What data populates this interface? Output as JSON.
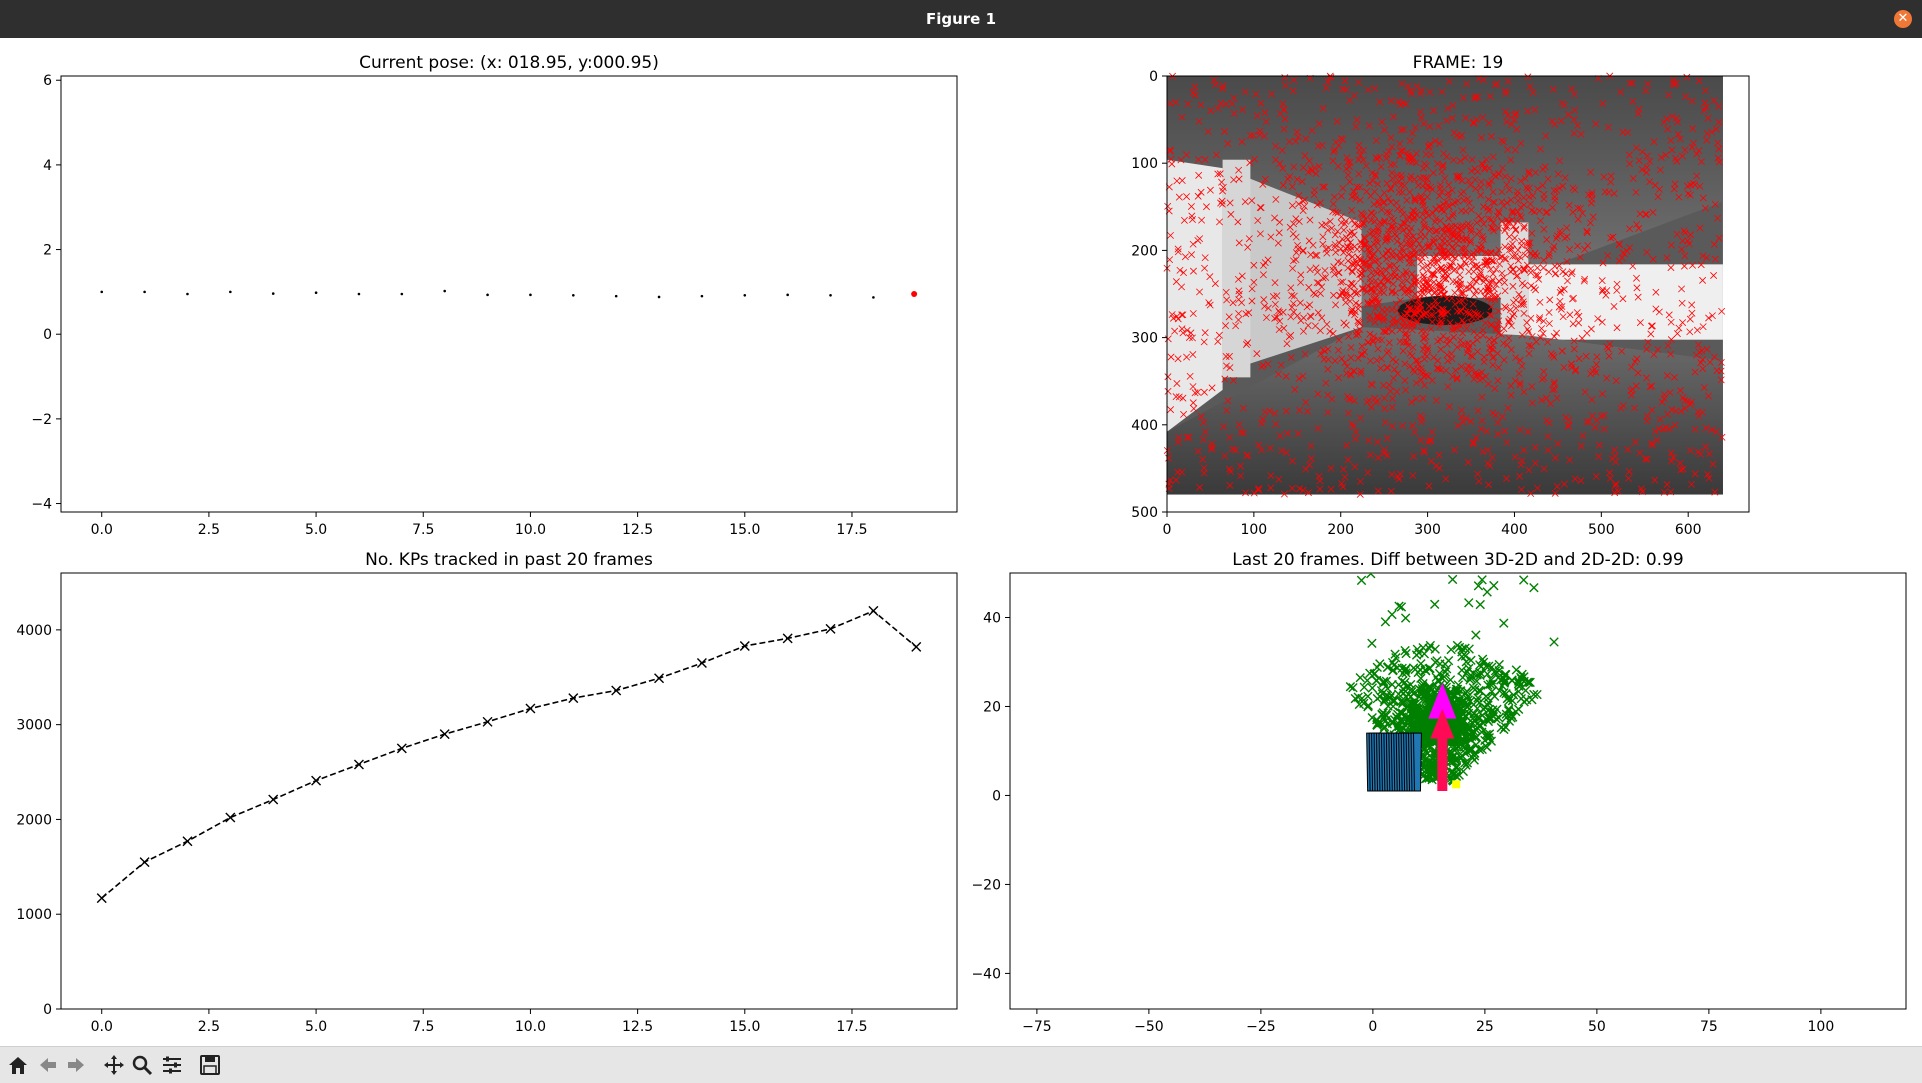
{
  "window": {
    "title": "Figure 1"
  },
  "toolbar": {
    "buttons": [
      "home-icon",
      "back-icon",
      "forward-icon",
      "pan-icon",
      "zoom-icon",
      "configure-icon",
      "save-icon"
    ]
  },
  "colors": {
    "axes": "#000000",
    "red": "#ff0000",
    "green": "#008000",
    "blue_bars": "#1f77b4",
    "magenta": "#ff00ff",
    "crimson": "#ff0a55",
    "yellow": "#ffff00",
    "titlebar": "#2f2f2f"
  },
  "chart_data": [
    {
      "id": "pose",
      "type": "scatter",
      "title": "Current pose: (x: 018.95, y:000.95)",
      "xlim": [
        -0.95,
        19.95
      ],
      "ylim": [
        -4.2,
        6.1
      ],
      "xticks": [
        "0.0",
        "2.5",
        "5.0",
        "7.5",
        "10.0",
        "12.5",
        "15.0",
        "17.5"
      ],
      "xtick_values": [
        0,
        2.5,
        5,
        7.5,
        10,
        12.5,
        15,
        17.5
      ],
      "yticks": [
        "−4",
        "−2",
        "0",
        "2",
        "4",
        "6"
      ],
      "ytick_values": [
        -4,
        -2,
        0,
        2,
        4,
        6
      ],
      "series": [
        {
          "x": [
            0,
            1,
            2,
            3,
            4,
            5,
            6,
            7,
            8,
            9,
            10,
            11,
            12,
            13,
            14,
            15,
            16,
            17,
            18
          ],
          "y": [
            1.0,
            1.0,
            0.95,
            1.0,
            0.96,
            0.98,
            0.95,
            0.95,
            1.02,
            0.93,
            0.93,
            0.92,
            0.9,
            0.88,
            0.9,
            0.92,
            0.93,
            0.92,
            0.87
          ]
        },
        {
          "x": [
            18.95
          ],
          "y": [
            0.95
          ]
        }
      ]
    },
    {
      "id": "frame",
      "type": "image",
      "title": "FRAME: 19",
      "xlim": [
        0,
        670
      ],
      "ylim": [
        500,
        0
      ],
      "xticks": [
        "0",
        "100",
        "200",
        "300",
        "400",
        "500",
        "600"
      ],
      "xtick_values": [
        0,
        100,
        200,
        300,
        400,
        500,
        600
      ],
      "yticks": [
        "0",
        "100",
        "200",
        "300",
        "400",
        "500"
      ],
      "ytick_values": [
        0,
        100,
        200,
        300,
        400,
        500
      ],
      "image_extent": [
        0,
        640,
        0,
        480
      ]
    },
    {
      "id": "kps",
      "type": "line",
      "title": "No. KPs tracked in past 20 frames",
      "xlim": [
        -0.95,
        19.95
      ],
      "ylim": [
        0,
        4600
      ],
      "xticks": [
        "0.0",
        "2.5",
        "5.0",
        "7.5",
        "10.0",
        "12.5",
        "15.0",
        "17.5"
      ],
      "xtick_values": [
        0,
        2.5,
        5,
        7.5,
        10,
        12.5,
        15,
        17.5
      ],
      "yticks": [
        "0",
        "1000",
        "2000",
        "3000",
        "4000"
      ],
      "ytick_values": [
        0,
        1000,
        2000,
        3000,
        4000
      ],
      "x": [
        0,
        1,
        2,
        3,
        4,
        5,
        6,
        7,
        8,
        9,
        10,
        11,
        12,
        13,
        14,
        15,
        16,
        17,
        18,
        19
      ],
      "values": [
        1170,
        1550,
        1770,
        2020,
        2210,
        2410,
        2580,
        2750,
        2900,
        3030,
        3170,
        3280,
        3360,
        3490,
        3650,
        3830,
        3910,
        4010,
        4200,
        3820
      ]
    },
    {
      "id": "map",
      "type": "scatter",
      "title": "Last 20 frames. Diff between 3D-2D and 2D-2D: 0.99",
      "xlim": [
        -81,
        119
      ],
      "ylim": [
        -48,
        50
      ],
      "xticks": [
        "−75",
        "−50",
        "−25",
        "0",
        "25",
        "50",
        "75",
        "100"
      ],
      "xtick_values": [
        -75,
        -50,
        -25,
        0,
        25,
        50,
        75,
        100
      ],
      "yticks": [
        "−40",
        "−20",
        "0",
        "20",
        "40"
      ],
      "ytick_values": [
        -40,
        -20,
        0,
        20,
        40
      ],
      "camera_x": [
        0,
        1,
        2,
        3,
        4,
        5,
        6,
        7,
        8,
        9,
        10,
        11,
        12,
        13,
        14,
        15,
        16,
        17,
        18,
        19
      ],
      "arrow_from": [
        15.5,
        1
      ],
      "arrow_to": [
        15.5,
        24
      ]
    }
  ]
}
